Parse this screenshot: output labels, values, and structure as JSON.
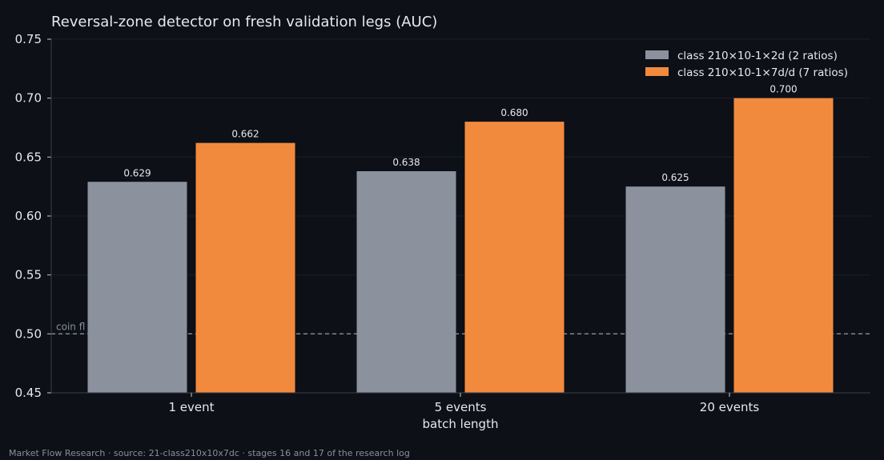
{
  "chart_data": {
    "type": "bar",
    "title": "Reversal-zone detector on fresh validation legs (AUC)",
    "xlabel": "batch length",
    "ylabel": "",
    "ylim": [
      0.45,
      0.75
    ],
    "yticks": [
      "0.45",
      "0.50",
      "0.55",
      "0.60",
      "0.65",
      "0.70",
      "0.75"
    ],
    "categories": [
      "1 event",
      "5 events",
      "20 events"
    ],
    "series": [
      {
        "name": "class 210×10-1×2d (2 ratios)",
        "color": "#8b929d",
        "values": [
          0.629,
          0.638,
          0.625
        ],
        "labels": [
          "0.629",
          "0.638",
          "0.625"
        ]
      },
      {
        "name": "class 210×10-1×7d/d (7 ratios)",
        "color": "#f28a3e",
        "values": [
          0.662,
          0.68,
          0.7
        ],
        "labels": [
          "0.662",
          "0.680",
          "0.700"
        ]
      }
    ],
    "reference_line": {
      "value": 0.5,
      "label": "coin fl",
      "color": "#8a8f99"
    },
    "grid": true,
    "legend_position": "top-right"
  },
  "footer": "Market Flow Research · source: 21-class210x10x7dc · stages 16 and 17 of the research log"
}
